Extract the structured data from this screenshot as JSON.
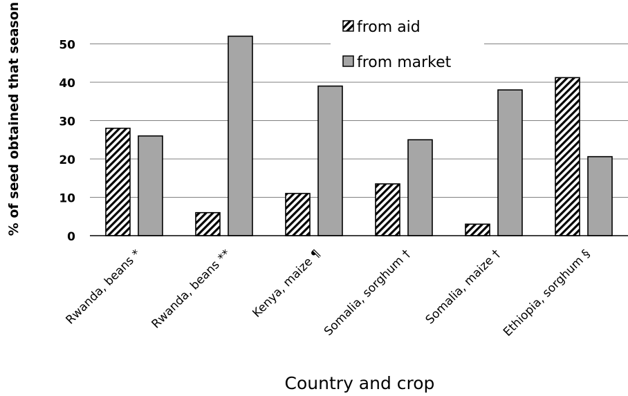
{
  "chart_data": {
    "type": "bar",
    "categories": [
      "Rwanda, beans *",
      "Rwanda, beans **",
      "Kenya, maize ¶",
      "Somalia, sorghum †",
      "Somalia, maize †",
      "Ethiopia, sorghum §"
    ],
    "series": [
      {
        "name": "from aid",
        "values": [
          28,
          6,
          11,
          13.5,
          3,
          41.2
        ],
        "pattern": "hatched",
        "color": "#000000"
      },
      {
        "name": "from market",
        "values": [
          26,
          52,
          39,
          25,
          38,
          20.6
        ],
        "pattern": "solid",
        "color": "#a6a6a6"
      }
    ],
    "xlabel": "Country and crop",
    "ylabel": "% of seed obtained that season",
    "ylim": [
      0,
      55
    ],
    "yticks": [
      0,
      10,
      20,
      30,
      40,
      50
    ],
    "grid": true,
    "legend_position": "top-right"
  }
}
